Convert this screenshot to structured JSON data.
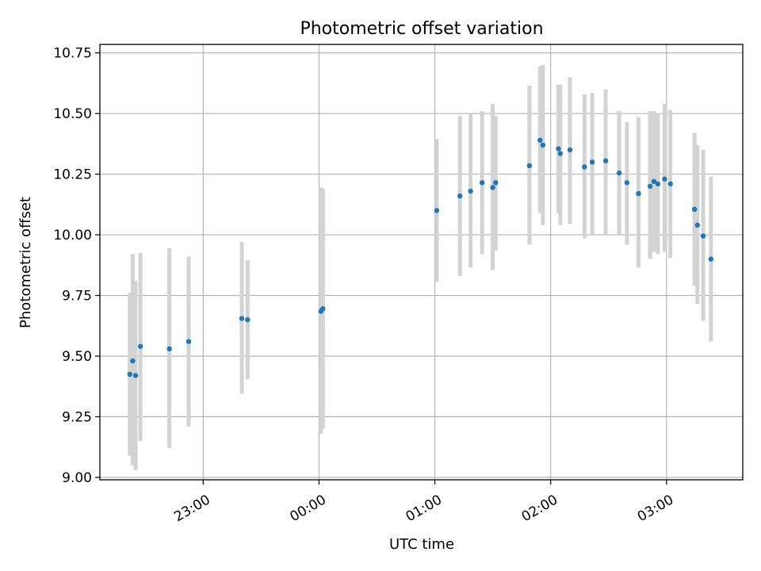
{
  "chart_data": {
    "type": "scatter",
    "title": "Photometric offset variation",
    "xlabel": "UTC time",
    "ylabel": "Photometric offset",
    "x_unit": "minutes relative to 00:00 UTC",
    "xlim": [
      -113.5,
      219.5
    ],
    "ylim": [
      8.99,
      10.785
    ],
    "grid": true,
    "x_ticks": [
      -60,
      0,
      60,
      120,
      180
    ],
    "x_tick_labels": [
      "23:00",
      "00:00",
      "01:00",
      "02:00",
      "03:00"
    ],
    "y_ticks": [
      9.0,
      9.25,
      9.5,
      9.75,
      10.0,
      10.25,
      10.5,
      10.75
    ],
    "y_tick_labels": [
      "9.00",
      "9.25",
      "9.50",
      "9.75",
      "10.00",
      "10.25",
      "10.50",
      "10.75"
    ],
    "marker_color": "#1f77b4",
    "errorbar_color": "#d3d3d3",
    "points": [
      {
        "x": -98.0,
        "y": 9.425,
        "ylo": 9.09,
        "yhi": 9.76
      },
      {
        "x": -96.5,
        "y": 9.48,
        "ylo": 9.05,
        "yhi": 9.92
      },
      {
        "x": -95.0,
        "y": 9.42,
        "ylo": 9.03,
        "yhi": 9.81
      },
      {
        "x": -92.5,
        "y": 9.54,
        "ylo": 9.15,
        "yhi": 9.925
      },
      {
        "x": -77.5,
        "y": 9.53,
        "ylo": 9.12,
        "yhi": 9.945
      },
      {
        "x": -67.5,
        "y": 9.56,
        "ylo": 9.21,
        "yhi": 9.91
      },
      {
        "x": -40.0,
        "y": 9.655,
        "ylo": 9.345,
        "yhi": 9.97
      },
      {
        "x": -37.0,
        "y": 9.65,
        "ylo": 9.405,
        "yhi": 9.895
      },
      {
        "x": 1.0,
        "y": 9.685,
        "ylo": 9.18,
        "yhi": 10.195
      },
      {
        "x": 2.0,
        "y": 9.695,
        "ylo": 9.2,
        "yhi": 10.19
      },
      {
        "x": 61.0,
        "y": 10.1,
        "ylo": 9.805,
        "yhi": 10.395
      },
      {
        "x": 73.0,
        "y": 10.16,
        "ylo": 9.83,
        "yhi": 10.49
      },
      {
        "x": 78.5,
        "y": 10.18,
        "ylo": 9.865,
        "yhi": 10.5
      },
      {
        "x": 84.5,
        "y": 10.215,
        "ylo": 9.92,
        "yhi": 10.51
      },
      {
        "x": 90.0,
        "y": 10.195,
        "ylo": 9.855,
        "yhi": 10.54
      },
      {
        "x": 91.5,
        "y": 10.215,
        "ylo": 9.935,
        "yhi": 10.49
      },
      {
        "x": 109.0,
        "y": 10.285,
        "ylo": 9.96,
        "yhi": 10.615
      },
      {
        "x": 114.5,
        "y": 10.39,
        "ylo": 10.09,
        "yhi": 10.695
      },
      {
        "x": 116.0,
        "y": 10.37,
        "ylo": 10.04,
        "yhi": 10.7
      },
      {
        "x": 124.0,
        "y": 10.355,
        "ylo": 10.09,
        "yhi": 10.62
      },
      {
        "x": 125.0,
        "y": 10.335,
        "ylo": 10.04,
        "yhi": 10.62
      },
      {
        "x": 130.0,
        "y": 10.35,
        "ylo": 10.045,
        "yhi": 10.65
      },
      {
        "x": 137.5,
        "y": 10.28,
        "ylo": 9.985,
        "yhi": 10.58
      },
      {
        "x": 141.5,
        "y": 10.3,
        "ylo": 10.0,
        "yhi": 10.585
      },
      {
        "x": 148.5,
        "y": 10.305,
        "ylo": 10.0,
        "yhi": 10.6
      },
      {
        "x": 155.5,
        "y": 10.255,
        "ylo": 10.0,
        "yhi": 10.51
      },
      {
        "x": 159.5,
        "y": 10.215,
        "ylo": 9.96,
        "yhi": 10.465
      },
      {
        "x": 165.5,
        "y": 10.17,
        "ylo": 9.865,
        "yhi": 10.485
      },
      {
        "x": 171.5,
        "y": 10.2,
        "ylo": 9.9,
        "yhi": 10.51
      },
      {
        "x": 173.5,
        "y": 10.22,
        "ylo": 9.93,
        "yhi": 10.51
      },
      {
        "x": 175.5,
        "y": 10.21,
        "ylo": 9.92,
        "yhi": 10.5
      },
      {
        "x": 179.0,
        "y": 10.23,
        "ylo": 9.93,
        "yhi": 10.54
      },
      {
        "x": 182.0,
        "y": 10.21,
        "ylo": 9.905,
        "yhi": 10.515
      },
      {
        "x": 194.5,
        "y": 10.105,
        "ylo": 9.79,
        "yhi": 10.42
      },
      {
        "x": 196.0,
        "y": 10.04,
        "ylo": 9.715,
        "yhi": 10.37
      },
      {
        "x": 199.0,
        "y": 9.995,
        "ylo": 9.645,
        "yhi": 10.35
      },
      {
        "x": 203.0,
        "y": 9.9,
        "ylo": 9.56,
        "yhi": 10.24
      }
    ]
  }
}
